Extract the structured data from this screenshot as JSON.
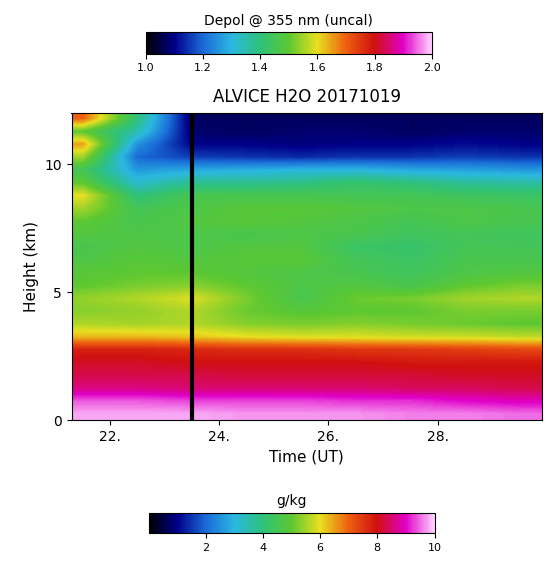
{
  "chart_data": {
    "type": "heatmap",
    "title": "ALVICE H2O 20171019",
    "x_label": "Time (UT)",
    "y_label": "Height (km)",
    "xlim": [
      21.3,
      29.9
    ],
    "ylim": [
      0,
      12
    ],
    "xticks": [
      {
        "value": 22,
        "label": "22."
      },
      {
        "value": 24,
        "label": "24."
      },
      {
        "value": 26,
        "label": "26."
      },
      {
        "value": 28,
        "label": "28."
      }
    ],
    "yticks": [
      0,
      5,
      10
    ],
    "vertical_line": 23.5,
    "x": [
      21.5,
      22.5,
      23.5,
      24.5,
      25.5,
      26.5,
      27.5,
      28.5,
      29.5
    ],
    "y": [
      0.25,
      0.75,
      1.25,
      1.75,
      2.25,
      2.75,
      3.25,
      3.75,
      4.25,
      4.75,
      5.25,
      5.75,
      6.25,
      6.75,
      7.25,
      7.75,
      8.25,
      8.75,
      9.25,
      9.75,
      10.25,
      10.75,
      11.25,
      11.75
    ],
    "cells": [
      [
        9.8,
        9.8,
        9.8,
        9.7,
        9.7,
        9.7,
        9.6,
        9.6,
        9.5
      ],
      [
        9.4,
        9.4,
        9.3,
        9.3,
        9.3,
        9.2,
        9.2,
        9.0,
        8.9
      ],
      [
        8.6,
        8.6,
        8.5,
        8.5,
        8.5,
        8.5,
        8.4,
        8.4,
        8.3
      ],
      [
        8.3,
        8.3,
        8.3,
        8.2,
        8.2,
        8.2,
        8.2,
        8.1,
        8.1
      ],
      [
        8.1,
        8.1,
        8.0,
        8.0,
        8.0,
        8.0,
        7.9,
        7.9,
        7.9
      ],
      [
        7.8,
        7.8,
        7.7,
        7.6,
        7.6,
        7.5,
        7.5,
        7.4,
        7.3
      ],
      [
        6.3,
        6.3,
        6.2,
        6.0,
        5.9,
        5.9,
        5.8,
        5.8,
        5.7
      ],
      [
        5.6,
        5.5,
        5.6,
        5.3,
        5.2,
        5.3,
        5.2,
        5.1,
        5.0
      ],
      [
        5.3,
        5.4,
        5.6,
        5.1,
        4.9,
        5.0,
        5.0,
        5.2,
        5.2
      ],
      [
        5.4,
        5.6,
        5.9,
        5.2,
        4.6,
        5.1,
        5.2,
        5.5,
        5.6
      ],
      [
        5.0,
        5.2,
        5.3,
        5.0,
        4.7,
        4.8,
        4.6,
        5.0,
        5.2
      ],
      [
        4.9,
        5.0,
        5.0,
        4.8,
        4.7,
        4.6,
        4.4,
        4.7,
        4.8
      ],
      [
        4.7,
        4.9,
        4.8,
        4.9,
        4.9,
        4.5,
        4.3,
        4.6,
        4.6
      ],
      [
        4.6,
        4.8,
        4.7,
        4.8,
        4.8,
        4.3,
        4.2,
        4.5,
        4.5
      ],
      [
        4.8,
        4.7,
        4.7,
        4.6,
        4.7,
        4.6,
        4.4,
        4.5,
        4.4
      ],
      [
        5.0,
        4.6,
        4.8,
        4.9,
        4.8,
        4.7,
        4.5,
        4.7,
        4.6
      ],
      [
        5.5,
        4.5,
        4.7,
        4.9,
        4.9,
        4.8,
        4.7,
        4.7,
        4.6
      ],
      [
        6.0,
        4.0,
        4.6,
        4.6,
        4.6,
        4.5,
        4.5,
        4.4,
        4.3
      ],
      [
        5.0,
        3.2,
        3.8,
        3.8,
        3.9,
        4.2,
        4.0,
        3.7,
        3.6
      ],
      [
        4.5,
        2.6,
        2.8,
        2.9,
        3.0,
        3.0,
        2.8,
        2.7,
        2.6
      ],
      [
        5.5,
        2.0,
        1.6,
        1.5,
        1.4,
        1.5,
        1.5,
        1.6,
        1.5
      ],
      [
        6.5,
        2.5,
        1.0,
        1.0,
        0.9,
        1.0,
        1.0,
        1.1,
        1.0
      ],
      [
        5.0,
        3.5,
        0.8,
        0.7,
        0.8,
        0.8,
        0.7,
        0.8,
        0.8
      ],
      [
        7.0,
        4.0,
        0.7,
        0.7,
        0.7,
        0.7,
        0.7,
        0.7,
        0.7
      ]
    ],
    "colorbar": {
      "label": "g/kg",
      "range": [
        0,
        10
      ],
      "ticks": [
        2,
        4,
        6,
        8,
        10
      ]
    },
    "top_colorbar": {
      "label": "Depol @ 355 nm (uncal)",
      "range": [
        1.0,
        2.0
      ],
      "ticks": [
        1.0,
        1.2,
        1.4,
        1.6,
        1.8,
        2.0
      ]
    }
  }
}
